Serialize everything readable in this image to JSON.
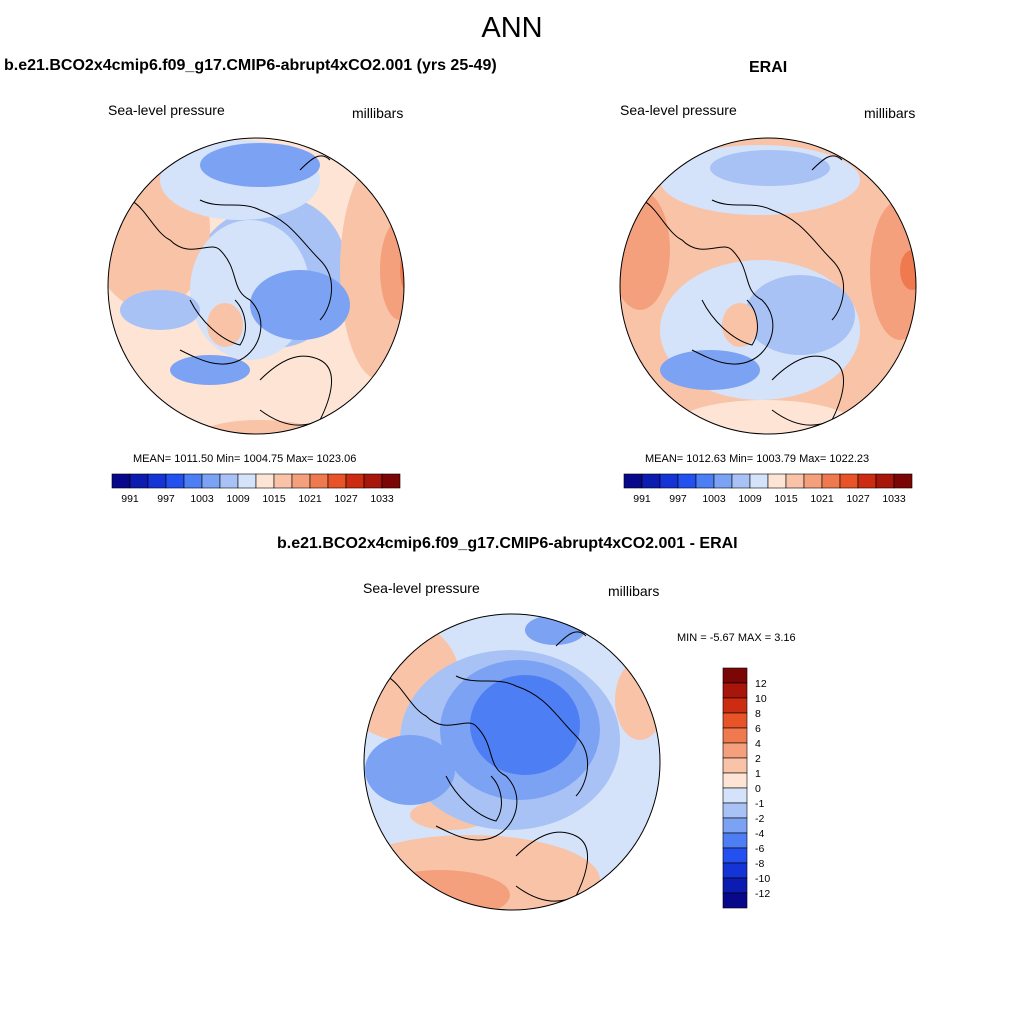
{
  "main_title": "ANN",
  "panels": [
    {
      "title": "b.e21.BCO2x4cmip6.f09_g17.CMIP6-abrupt4xCO2.001 (yrs 25-49)",
      "variable": "Sea-level pressure",
      "units": "millibars",
      "stats": "MEAN= 1011.50  Min= 1004.75  Max= 1023.06"
    },
    {
      "title": "ERAI",
      "variable": "Sea-level pressure",
      "units": "millibars",
      "stats": "MEAN= 1012.63  Min= 1003.79  Max= 1022.23"
    },
    {
      "title": "b.e21.BCO2x4cmip6.f09_g17.CMIP6-abrupt4xCO2.001 - ERAI",
      "variable": "Sea-level pressure",
      "units": "millibars",
      "stats": "MIN =  -5.67 MAX =   3.16"
    }
  ],
  "colorbar_horizontal": {
    "colors": [
      "#08088a",
      "#0c1bb0",
      "#1434d6",
      "#2450f0",
      "#4d7ef4",
      "#7ca2f4",
      "#a8c2f5",
      "#d4e3fa",
      "#fde4d4",
      "#f9c3a8",
      "#f5a07d",
      "#f07a50",
      "#e85428",
      "#cc2d12",
      "#a8150a",
      "#7a0606"
    ],
    "labels": [
      "991",
      "997",
      "1003",
      "1009",
      "1015",
      "1021",
      "1027",
      "1033"
    ]
  },
  "colorbar_vertical": {
    "colors": [
      "#7a0606",
      "#a8150a",
      "#cc2d12",
      "#e85428",
      "#f07a50",
      "#f5a07d",
      "#f9c3a8",
      "#fde4d4",
      "#d4e3fa",
      "#a8c2f5",
      "#7ca2f4",
      "#4d7ef4",
      "#2450f0",
      "#1434d6",
      "#0c1bb0",
      "#08088a"
    ],
    "labels": [
      "12",
      "10",
      "8",
      "6",
      "4",
      "2",
      "1",
      "0",
      "-1",
      "-2",
      "-4",
      "-6",
      "-8",
      "-10",
      "-12"
    ]
  },
  "map_colors": {
    "deep_blue": "#4d7ef4",
    "mid_blue": "#7ca2f4",
    "light_blue": "#a8c2f5",
    "pale_blue": "#d4e3fa",
    "pale_red": "#fde4d4",
    "light_red": "#f9c3a8",
    "mid_red": "#f5a07d",
    "red": "#f07a50"
  }
}
